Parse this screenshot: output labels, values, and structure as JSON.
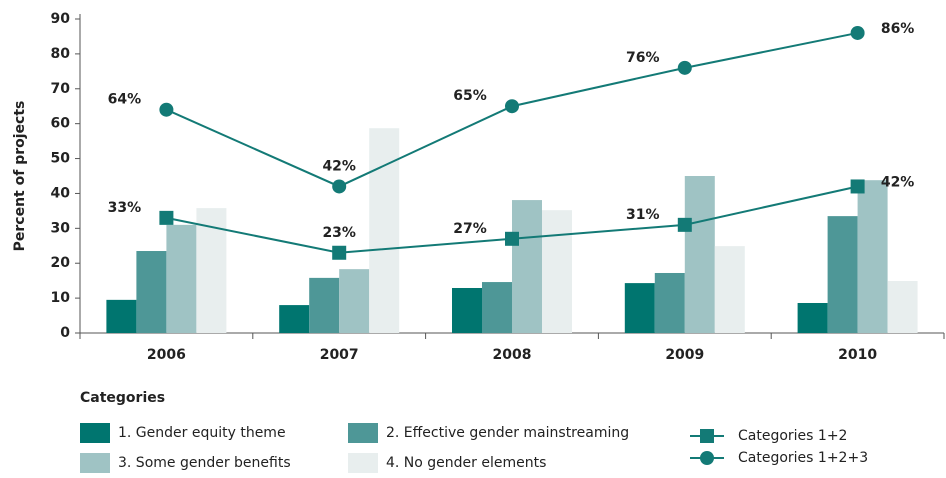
{
  "chart_data": {
    "type": "bar",
    "y_label": "Percent of projects",
    "legend_title": "Categories",
    "categories": [
      "2006",
      "2007",
      "2008",
      "2009",
      "2010"
    ],
    "ylim": [
      0,
      90
    ],
    "yticks": [
      0,
      10,
      20,
      30,
      40,
      50,
      60,
      70,
      80,
      90
    ],
    "series": [
      {
        "name": "1. Gender equity theme",
        "type": "bar",
        "color": "#00756f",
        "values": [
          9.5,
          8,
          12.9,
          14.3,
          8.6
        ]
      },
      {
        "name": "2. Effective gender mainstreaming",
        "type": "bar",
        "color": "#4e9797",
        "values": [
          23.5,
          15.8,
          14.6,
          17.2,
          33.5
        ]
      },
      {
        "name": "3. Some gender benefits",
        "type": "bar",
        "color": "#9fc3c4",
        "values": [
          31,
          18.3,
          38.1,
          45,
          43.8
        ]
      },
      {
        "name": "4. No gender elements",
        "type": "bar",
        "color": "#e8eeee",
        "values": [
          35.8,
          58.7,
          35.2,
          24.9,
          14.9
        ]
      },
      {
        "name": "Categories 1+2",
        "type": "line",
        "marker": "square",
        "color": "#137a76",
        "values": [
          33,
          23,
          27,
          31,
          42
        ],
        "value_labels": [
          "33%",
          "23%",
          "27%",
          "31%",
          "42%"
        ]
      },
      {
        "name": "Categories 1+2+3",
        "type": "line",
        "marker": "circle",
        "color": "#137a76",
        "values": [
          64,
          42,
          65,
          76,
          86
        ],
        "value_labels": [
          "64%",
          "42%",
          "65%",
          "76%",
          "86%"
        ]
      }
    ]
  }
}
